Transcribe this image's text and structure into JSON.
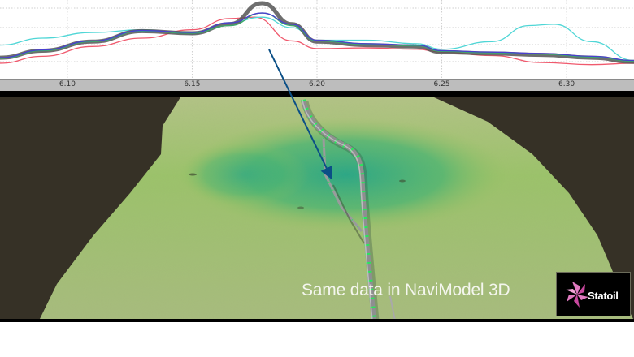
{
  "chart_data": {
    "type": "line",
    "title": "",
    "xlabel": "",
    "ylabel": "",
    "x_ticks": [
      "6.10",
      "6.15",
      "6.20",
      "6.25",
      "6.30"
    ],
    "xlim": [
      6.073,
      6.327
    ],
    "grid": true,
    "legend": "none",
    "series": [
      {
        "name": "thick-gray",
        "color": "#555555",
        "x": [
          6.073,
          6.09,
          6.11,
          6.13,
          6.15,
          6.165,
          6.178,
          6.19,
          6.2,
          6.22,
          6.24,
          6.25,
          6.27,
          6.29,
          6.31,
          6.327
        ],
        "y": [
          0.22,
          0.32,
          0.45,
          0.6,
          0.57,
          0.7,
          1.0,
          0.7,
          0.45,
          0.4,
          0.38,
          0.3,
          0.28,
          0.26,
          0.22,
          0.16
        ]
      },
      {
        "name": "cyan",
        "color": "#4fd6d6",
        "x": [
          6.073,
          6.09,
          6.11,
          6.13,
          6.15,
          6.165,
          6.178,
          6.19,
          6.2,
          6.22,
          6.24,
          6.25,
          6.27,
          6.285,
          6.295,
          6.31,
          6.327
        ],
        "y": [
          0.4,
          0.5,
          0.58,
          0.62,
          0.56,
          0.72,
          0.8,
          0.65,
          0.47,
          0.47,
          0.42,
          0.34,
          0.45,
          0.68,
          0.7,
          0.45,
          0.18
        ]
      },
      {
        "name": "red",
        "color": "#f05a6e",
        "x": [
          6.073,
          6.09,
          6.11,
          6.13,
          6.15,
          6.165,
          6.175,
          6.19,
          6.2,
          6.22,
          6.24,
          6.25,
          6.27,
          6.29,
          6.31,
          6.327
        ],
        "y": [
          0.14,
          0.24,
          0.38,
          0.5,
          0.62,
          0.78,
          0.8,
          0.46,
          0.35,
          0.36,
          0.34,
          0.3,
          0.25,
          0.15,
          0.12,
          0.14
        ]
      },
      {
        "name": "blue",
        "color": "#4a3fd0",
        "x": [
          6.073,
          6.09,
          6.11,
          6.13,
          6.15,
          6.165,
          6.178,
          6.19,
          6.2,
          6.22,
          6.24,
          6.25,
          6.27,
          6.29,
          6.31,
          6.327
        ],
        "y": [
          0.22,
          0.33,
          0.46,
          0.61,
          0.58,
          0.72,
          0.86,
          0.7,
          0.47,
          0.42,
          0.4,
          0.32,
          0.3,
          0.28,
          0.24,
          0.18
        ]
      },
      {
        "name": "green",
        "color": "#3caa6a",
        "x": [
          6.073,
          6.09,
          6.11,
          6.13,
          6.15,
          6.165,
          6.178,
          6.19,
          6.2,
          6.22,
          6.24,
          6.25,
          6.27,
          6.29,
          6.31,
          6.327
        ],
        "y": [
          0.21,
          0.32,
          0.45,
          0.6,
          0.57,
          0.68,
          0.86,
          0.68,
          0.46,
          0.41,
          0.39,
          0.31,
          0.29,
          0.27,
          0.23,
          0.17
        ]
      }
    ]
  },
  "viewer": {
    "caption": "Same data in NaviModel 3D",
    "logo_text": "Statoil",
    "annotation": "arrow-from-chart-peak-to-pipeline"
  },
  "colors": {
    "background_dark": "#363126",
    "seabed_light": "#a9c27a",
    "seabed_deep": "#2fae7a",
    "arrow": "#0b4f86",
    "logo_pink": "#e07ac0",
    "pipeline_marker": "#27e85a"
  }
}
